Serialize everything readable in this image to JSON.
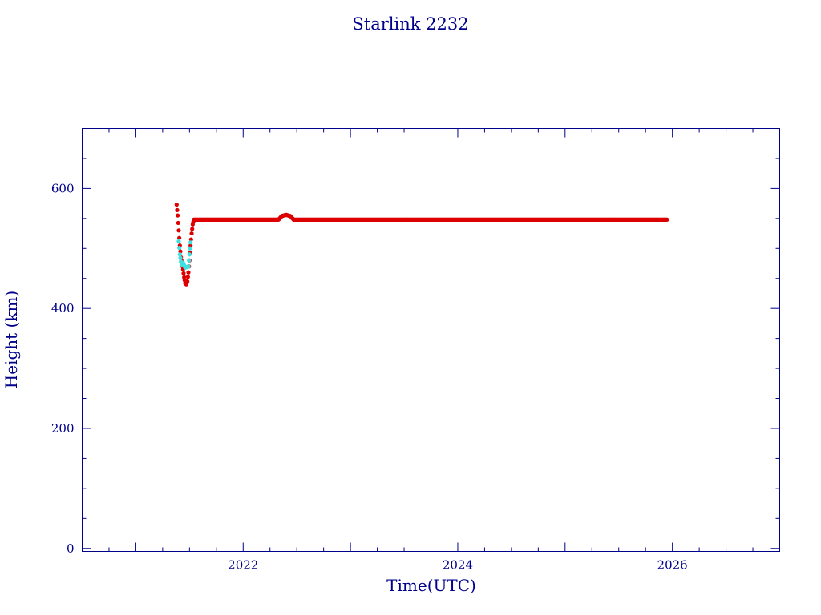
{
  "chart_data": {
    "type": "scatter",
    "title": "Starlink 2232",
    "xlabel": "Time(UTC)",
    "ylabel": "Height (km)",
    "xlim": [
      2020.5,
      2027.0
    ],
    "ylim": [
      -5,
      700
    ],
    "x_ticks": [
      2022,
      2024,
      2026
    ],
    "y_ticks": [
      0,
      200,
      400,
      600
    ],
    "grid": false,
    "colors": {
      "axis": "#00008b",
      "primary": "#dd0000",
      "secondary": "#40e0e0"
    },
    "series": [
      {
        "color": "#dd0000",
        "x": [
          2021.38,
          2021.39,
          2021.4,
          2021.41,
          2021.42,
          2021.43,
          2021.44,
          2021.45,
          2021.46,
          2021.47,
          2021.48,
          2021.49,
          2021.5,
          2021.51,
          2021.52,
          2021.53,
          2021.54,
          2021.55,
          2021.6,
          2021.8,
          2022.0,
          2022.2,
          2022.33,
          2022.36,
          2022.4,
          2022.44,
          2022.47,
          2022.5,
          2022.8,
          2023.2,
          2023.6,
          2024.0,
          2024.4,
          2024.8,
          2025.2,
          2025.6,
          2025.95
        ],
        "y": [
          573,
          555,
          530,
          505,
          485,
          475,
          465,
          452,
          442,
          440,
          445,
          460,
          480,
          505,
          525,
          540,
          548,
          548,
          548,
          548,
          548,
          548,
          548,
          554,
          556,
          554,
          548,
          548,
          548,
          548,
          548,
          548,
          548,
          548,
          548,
          548,
          548
        ]
      },
      {
        "color": "#40e0e0",
        "x": [
          2021.4,
          2021.41,
          2021.42,
          2021.43,
          2021.44,
          2021.45,
          2021.46,
          2021.49,
          2021.5,
          2021.51
        ],
        "y": [
          512,
          490,
          478,
          473,
          476,
          472,
          468,
          470,
          490,
          510
        ]
      }
    ]
  }
}
